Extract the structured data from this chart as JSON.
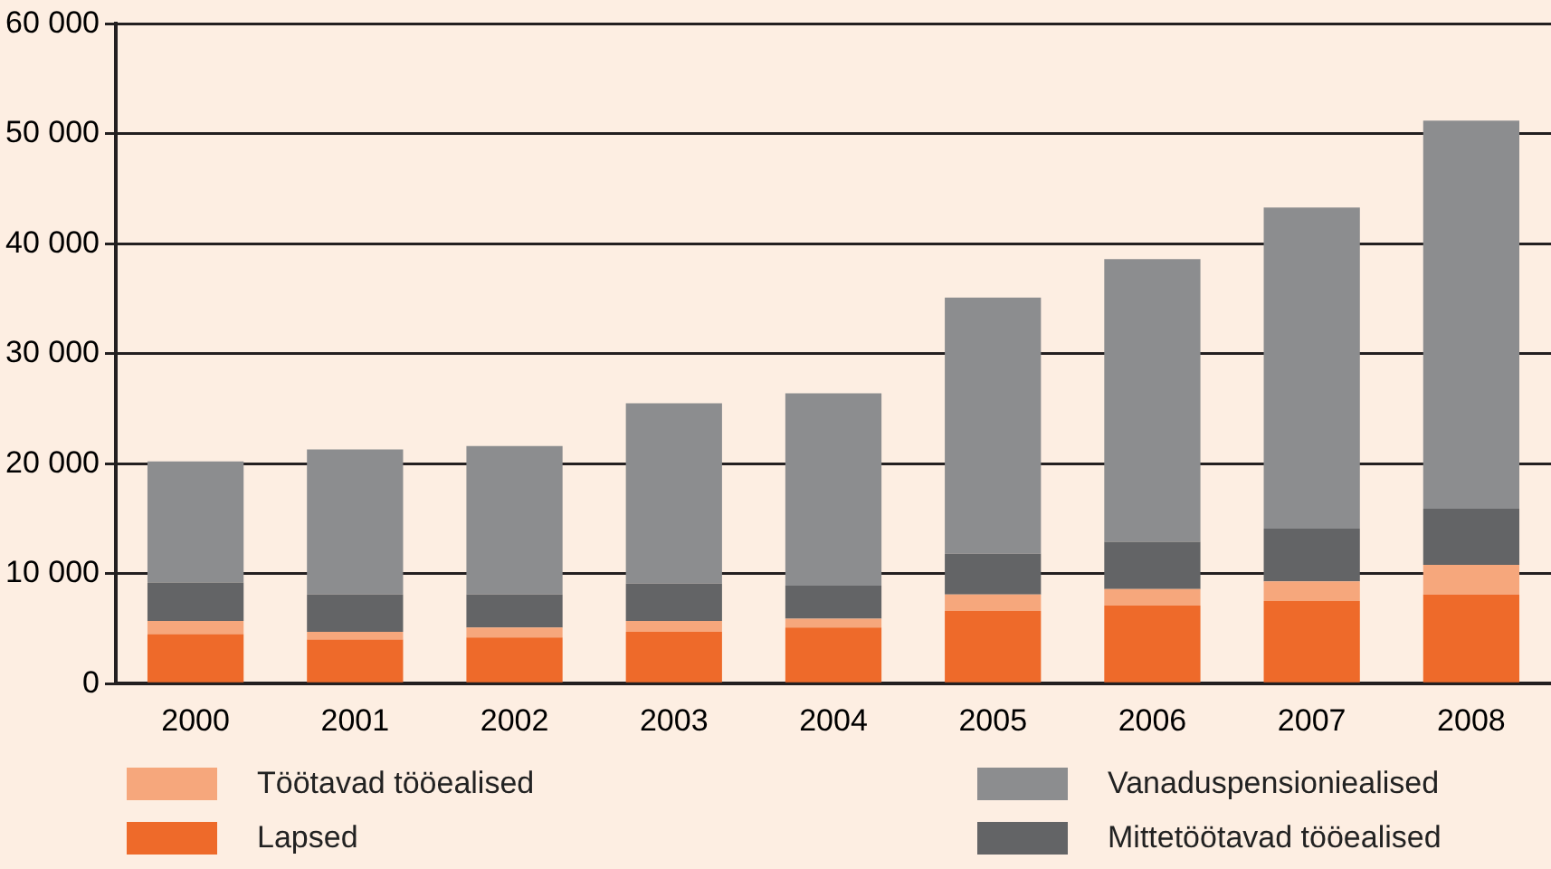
{
  "chart_data": {
    "type": "bar",
    "stacked": true,
    "categories": [
      "2000",
      "2001",
      "2002",
      "2003",
      "2004",
      "2005",
      "2006",
      "2007",
      "2008"
    ],
    "series": [
      {
        "name": "Lapsed",
        "color": "#ee6a2a",
        "values": [
          4500,
          4000,
          4200,
          4700,
          5100,
          6600,
          7100,
          7500,
          8100
        ]
      },
      {
        "name": "Töötavad tööealised",
        "color": "#f6a77c",
        "values": [
          1200,
          700,
          900,
          1000,
          800,
          1500,
          1500,
          1800,
          2700
        ]
      },
      {
        "name": "Mittetöötavad tööealised",
        "color": "#636466",
        "values": [
          3500,
          3400,
          3000,
          3400,
          3000,
          3700,
          4300,
          4800,
          5100
        ]
      },
      {
        "name": "Vanaduspensioniealised",
        "color": "#8c8d8f",
        "values": [
          11000,
          13200,
          13500,
          16400,
          17500,
          23300,
          25700,
          29200,
          35300
        ]
      }
    ],
    "ylim": [
      0,
      60000
    ],
    "yticks": [
      {
        "value": 0,
        "label": "0"
      },
      {
        "value": 10000,
        "label": "10 000"
      },
      {
        "value": 20000,
        "label": "20 000"
      },
      {
        "value": 30000,
        "label": "30 000"
      },
      {
        "value": 40000,
        "label": "40 000"
      },
      {
        "value": 50000,
        "label": "50 000"
      },
      {
        "value": 60000,
        "label": "60 000"
      }
    ],
    "grid": "y",
    "legend": "bottom"
  }
}
